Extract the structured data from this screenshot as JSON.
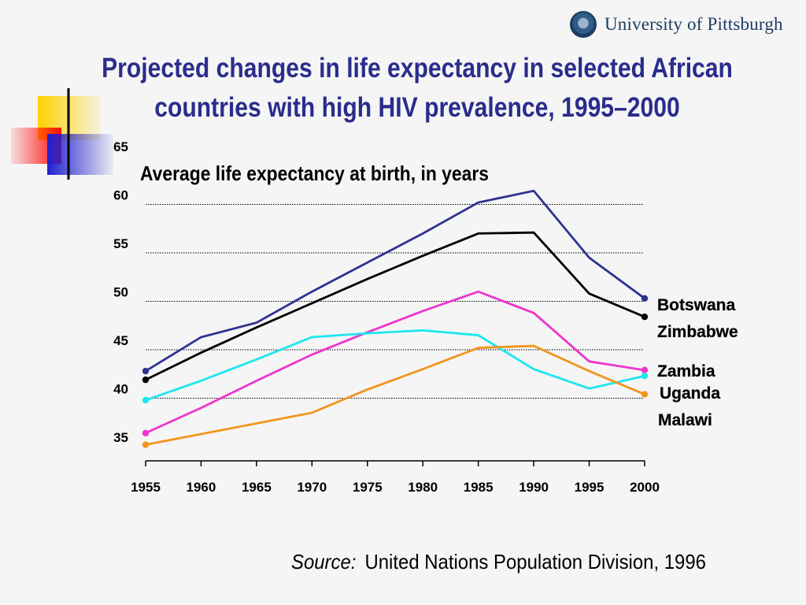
{
  "header": {
    "logo_text": "University of Pittsburgh",
    "title_line1": "Projected changes in life expectancy in selected African",
    "title_line2": "countries with high HIV prevalence, 1995–2000"
  },
  "footer": {
    "source_label": "Source:",
    "source_text": "United Nations Population Division, 1996"
  },
  "chart_data": {
    "type": "line",
    "title": "Average life expectancy at birth, in years",
    "xlabel": "",
    "ylabel": "",
    "x": [
      1955,
      1960,
      1965,
      1970,
      1975,
      1980,
      1985,
      1990,
      1995,
      2000
    ],
    "ylim": [
      35,
      65
    ],
    "yticks": [
      35,
      40,
      45,
      50,
      55,
      60,
      65
    ],
    "grid": "horizontal dotted",
    "series": [
      {
        "name": "Botswana",
        "color": "#2e3391",
        "values": [
          42.8,
          46.3,
          47.8,
          51.0,
          54.0,
          57.0,
          60.2,
          61.4,
          54.5,
          50.3
        ]
      },
      {
        "name": "Zimbabwe",
        "color": "#000000",
        "values": [
          41.9,
          44.7,
          47.3,
          49.8,
          52.3,
          54.7,
          57.0,
          57.1,
          50.8,
          48.4
        ]
      },
      {
        "name": "Zambia",
        "color": "#ee35cc",
        "values": [
          36.4,
          39.0,
          41.8,
          44.5,
          46.8,
          49.0,
          51.0,
          48.8,
          43.8,
          42.9
        ]
      },
      {
        "name": "Uganda",
        "color": "#1de6f0",
        "values": [
          39.8,
          41.8,
          44.0,
          46.3,
          46.7,
          47.0,
          46.5,
          43.0,
          41.0,
          42.3
        ]
      },
      {
        "name": "Malawi",
        "color": "#f0961e",
        "values": [
          35.2,
          36.3,
          37.4,
          38.5,
          40.9,
          43.0,
          45.2,
          45.4,
          42.8,
          40.4
        ]
      }
    ]
  }
}
